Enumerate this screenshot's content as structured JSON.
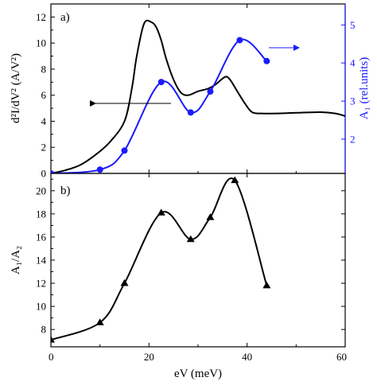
{
  "chart_data": [
    {
      "panel": "a)",
      "type": "line",
      "xlabel": "",
      "ylabel_left": "d²I/dV² (A/V²)",
      "ylabel_right": "A₁ (rel.units)",
      "xlim": [
        0,
        60
      ],
      "ylim_left": [
        0,
        13
      ],
      "ylim_right": [
        1.1,
        5.55
      ],
      "xticks": [
        0,
        20,
        40,
        60
      ],
      "yticks_left": [
        0,
        2,
        4,
        6,
        8,
        10,
        12
      ],
      "yticks_right": [
        2,
        3,
        4,
        5
      ],
      "left_color": "#000000",
      "right_color": "#1a1aff",
      "series": [
        {
          "axis": "left",
          "style": "line",
          "color": "#000000",
          "x": [
            0,
            3,
            6,
            9,
            12,
            15,
            16.5,
            17.5,
            19,
            20.5,
            21.5,
            22.5,
            23.5,
            25,
            26.5,
            28,
            30,
            32,
            33.5,
            35.5,
            36.5,
            38,
            39.5,
            41,
            43,
            46,
            50,
            55,
            58,
            60
          ],
          "y": [
            0,
            0.25,
            0.65,
            1.4,
            2.4,
            4.0,
            6.5,
            9.0,
            11.5,
            11.6,
            11.2,
            10.2,
            8.8,
            7.2,
            6.2,
            6.0,
            6.3,
            6.5,
            6.8,
            7.4,
            7.2,
            6.3,
            5.4,
            4.7,
            4.6,
            4.6,
            4.65,
            4.7,
            4.6,
            4.4
          ]
        },
        {
          "axis": "right",
          "style": "line+markers",
          "marker": "circle",
          "color": "#1a1aff",
          "x": [
            0,
            10,
            15,
            22.5,
            28.5,
            32.5,
            38.5,
            44
          ],
          "y": [
            1.1,
            1.2,
            1.7,
            3.5,
            2.7,
            3.25,
            4.6,
            4.05
          ]
        }
      ],
      "annotations": [
        {
          "type": "arrow",
          "direction": "left",
          "target": "left-axis"
        },
        {
          "type": "arrow",
          "direction": "right",
          "target": "right-axis"
        }
      ]
    },
    {
      "panel": "b)",
      "type": "line",
      "xlabel": "eV (meV)",
      "ylabel": "A₁/A₂",
      "xlim": [
        0,
        60
      ],
      "ylim": [
        6.5,
        21.5
      ],
      "xticks": [
        0,
        20,
        40,
        60
      ],
      "yticks": [
        8,
        10,
        12,
        14,
        16,
        18,
        20
      ],
      "series": [
        {
          "style": "line+markers",
          "marker": "triangle",
          "color": "#000000",
          "x": [
            0,
            10,
            15,
            22.5,
            28.5,
            32.5,
            37.5,
            44
          ],
          "y": [
            7.1,
            8.6,
            12.0,
            18.1,
            15.8,
            17.7,
            20.9,
            11.8
          ]
        }
      ]
    }
  ]
}
